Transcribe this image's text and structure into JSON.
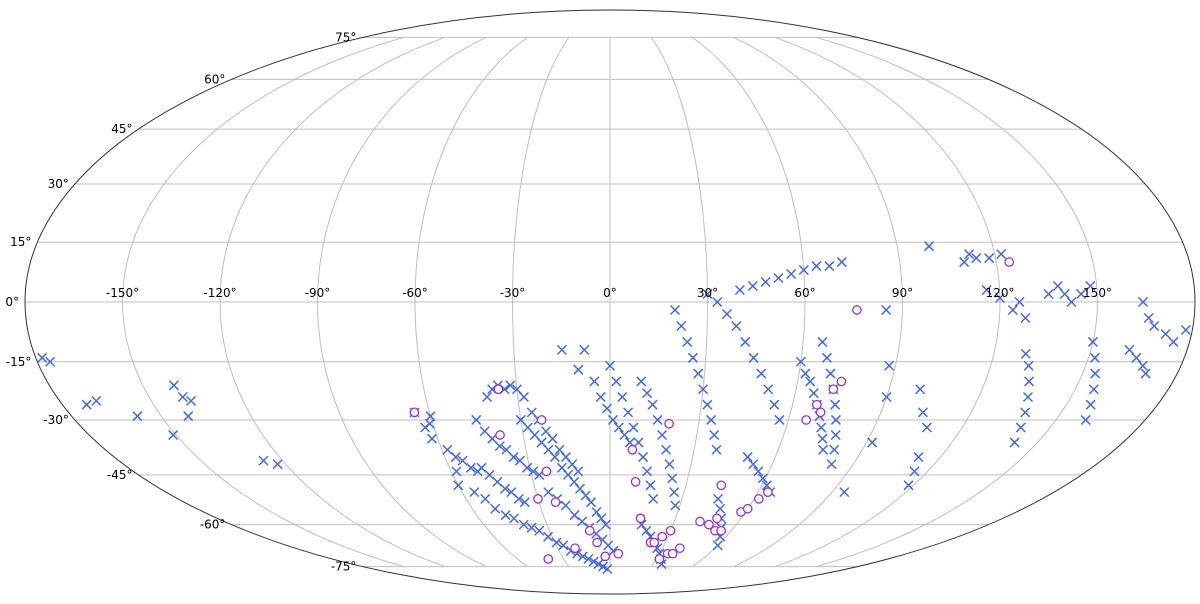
{
  "chart_data": {
    "type": "scatter",
    "projection": "mollweide",
    "title": "",
    "xlabel": "",
    "ylabel": "",
    "grid": true,
    "xlim": [
      -180,
      180
    ],
    "ylim": [
      -90,
      90
    ],
    "x_ticks": [
      -150,
      -120,
      -90,
      -60,
      -30,
      0,
      30,
      60,
      90,
      120,
      150
    ],
    "x_tick_labels": [
      "-150°",
      "-120°",
      "-90°",
      "-60°",
      "-30°",
      "0°",
      "30°",
      "60°",
      "90°",
      "120°",
      "150°"
    ],
    "y_ticks": [
      -75,
      -60,
      -45,
      -30,
      -15,
      0,
      15,
      30,
      45,
      60,
      75
    ],
    "y_tick_labels": [
      "-75°",
      "-60°",
      "-45°",
      "-30°",
      "-15°",
      "0°",
      "15°",
      "30°",
      "45°",
      "60°",
      "75°"
    ],
    "colors": {
      "cross": "#4169e1",
      "circle": "#9932cc",
      "grid": "#bfbfbf",
      "boundary": "#333333"
    },
    "series": [
      {
        "marker": "x",
        "points": [
          [
            -178,
            -14
          ],
          [
            -176,
            -15
          ],
          [
            -172,
            -26
          ],
          [
            -168,
            -25
          ],
          [
            -158,
            -29
          ],
          [
            -151,
            -34
          ],
          [
            -141,
            -29
          ],
          [
            -139,
            -24
          ],
          [
            -140,
            -21
          ],
          [
            -137,
            -25
          ],
          [
            -127,
            -41
          ],
          [
            -123,
            -42
          ],
          [
            -65,
            -28
          ],
          [
            -63,
            -32
          ],
          [
            -61,
            -31
          ],
          [
            -62,
            -35
          ],
          [
            -60,
            -29
          ],
          [
            -58,
            -38
          ],
          [
            -56,
            -40
          ],
          [
            -54,
            -41
          ],
          [
            -52,
            -43
          ],
          [
            -50,
            -44
          ],
          [
            -48,
            -43
          ],
          [
            -46,
            -45
          ],
          [
            -44,
            -47
          ],
          [
            -42,
            -49
          ],
          [
            -40,
            -50
          ],
          [
            -38,
            -52
          ],
          [
            -36,
            -53
          ],
          [
            -60,
            -48
          ],
          [
            -58,
            -44
          ],
          [
            -55,
            -50
          ],
          [
            -52,
            -52
          ],
          [
            -50,
            -55
          ],
          [
            -47,
            -57
          ],
          [
            -44,
            -58
          ],
          [
            -41,
            -60
          ],
          [
            -38,
            -61
          ],
          [
            -35,
            -62
          ],
          [
            -32,
            -64
          ],
          [
            -29,
            -66
          ],
          [
            -26,
            -67
          ],
          [
            -23,
            -69
          ],
          [
            -20,
            -70
          ],
          [
            -17,
            -71
          ],
          [
            -14,
            -72
          ],
          [
            -11,
            -73
          ],
          [
            -8,
            -74
          ],
          [
            -5,
            -75
          ],
          [
            -2,
            -76
          ],
          [
            -45,
            -30
          ],
          [
            -43,
            -33
          ],
          [
            -41,
            -35
          ],
          [
            -39,
            -37
          ],
          [
            -37,
            -38
          ],
          [
            -35,
            -40
          ],
          [
            -33,
            -41
          ],
          [
            -31,
            -43
          ],
          [
            -29,
            -44
          ],
          [
            -27,
            -45
          ],
          [
            -40,
            -24
          ],
          [
            -38,
            -22
          ],
          [
            -36,
            -21
          ],
          [
            -34,
            -22
          ],
          [
            -32,
            -21
          ],
          [
            -30,
            -22
          ],
          [
            -28,
            -24
          ],
          [
            -26,
            -28
          ],
          [
            -24,
            -30
          ],
          [
            -22,
            -33
          ],
          [
            -20,
            -35
          ],
          [
            -18,
            -38
          ],
          [
            -16,
            -40
          ],
          [
            -14,
            -42
          ],
          [
            -12,
            -44
          ],
          [
            -30,
            -30
          ],
          [
            -28,
            -32
          ],
          [
            -26,
            -34
          ],
          [
            -24,
            -36
          ],
          [
            -22,
            -38
          ],
          [
            -20,
            -40
          ],
          [
            -18,
            -43
          ],
          [
            -16,
            -45
          ],
          [
            -14,
            -47
          ],
          [
            -12,
            -49
          ],
          [
            -10,
            -51
          ],
          [
            -8,
            -53
          ],
          [
            -6,
            -56
          ],
          [
            -4,
            -58
          ],
          [
            -2,
            -60
          ],
          [
            -25,
            -50
          ],
          [
            -22,
            -52
          ],
          [
            -19,
            -54
          ],
          [
            -16,
            -57
          ],
          [
            -13,
            -59
          ],
          [
            -10,
            -61
          ],
          [
            -7,
            -63
          ],
          [
            -4,
            -65
          ],
          [
            -1,
            -67
          ],
          [
            2,
            -69
          ],
          [
            -15,
            -12
          ],
          [
            -10,
            -17
          ],
          [
            -8,
            -12
          ],
          [
            -5,
            -20
          ],
          [
            -3,
            -24
          ],
          [
            -1,
            -27
          ],
          [
            1,
            -30
          ],
          [
            3,
            -32
          ],
          [
            5,
            -34
          ],
          [
            7,
            -36
          ],
          [
            0,
            -16
          ],
          [
            2,
            -20
          ],
          [
            4,
            -24
          ],
          [
            6,
            -28
          ],
          [
            8,
            -32
          ],
          [
            10,
            -36
          ],
          [
            12,
            -40
          ],
          [
            14,
            -44
          ],
          [
            16,
            -48
          ],
          [
            18,
            -52
          ],
          [
            10,
            -20
          ],
          [
            12,
            -23
          ],
          [
            14,
            -26
          ],
          [
            16,
            -30
          ],
          [
            18,
            -34
          ],
          [
            20,
            -38
          ],
          [
            22,
            -42
          ],
          [
            24,
            -46
          ],
          [
            26,
            -50
          ],
          [
            28,
            -54
          ],
          [
            15,
            -60
          ],
          [
            18,
            -62
          ],
          [
            21,
            -64
          ],
          [
            24,
            -66
          ],
          [
            27,
            -68
          ],
          [
            30,
            -70
          ],
          [
            33,
            -72
          ],
          [
            36,
            -74
          ],
          [
            20,
            -2
          ],
          [
            22,
            -6
          ],
          [
            24,
            -10
          ],
          [
            26,
            -14
          ],
          [
            28,
            -18
          ],
          [
            30,
            -22
          ],
          [
            32,
            -26
          ],
          [
            34,
            -30
          ],
          [
            36,
            -34
          ],
          [
            38,
            -38
          ],
          [
            30,
            2
          ],
          [
            33,
            0
          ],
          [
            36,
            -3
          ],
          [
            39,
            -6
          ],
          [
            42,
            -10
          ],
          [
            45,
            -14
          ],
          [
            48,
            -18
          ],
          [
            51,
            -22
          ],
          [
            54,
            -26
          ],
          [
            57,
            -30
          ],
          [
            40,
            3
          ],
          [
            44,
            4
          ],
          [
            48,
            5
          ],
          [
            52,
            6
          ],
          [
            56,
            7
          ],
          [
            60,
            8
          ],
          [
            64,
            9
          ],
          [
            68,
            9
          ],
          [
            72,
            10
          ],
          [
            50,
            -40
          ],
          [
            53,
            -42
          ],
          [
            56,
            -44
          ],
          [
            59,
            -46
          ],
          [
            62,
            -48
          ],
          [
            65,
            -50
          ],
          [
            45,
            -52
          ],
          [
            48,
            -55
          ],
          [
            51,
            -58
          ],
          [
            54,
            -61
          ],
          [
            57,
            -64
          ],
          [
            60,
            -67
          ],
          [
            66,
            -10
          ],
          [
            68,
            -14
          ],
          [
            70,
            -18
          ],
          [
            72,
            -22
          ],
          [
            74,
            -26
          ],
          [
            76,
            -30
          ],
          [
            78,
            -34
          ],
          [
            80,
            -38
          ],
          [
            82,
            -42
          ],
          [
            60,
            -15
          ],
          [
            62,
            -18
          ],
          [
            64,
            -20
          ],
          [
            66,
            -23
          ],
          [
            68,
            -26
          ],
          [
            70,
            -29
          ],
          [
            72,
            -32
          ],
          [
            74,
            -35
          ],
          [
            76,
            -38
          ],
          [
            85,
            -2
          ],
          [
            88,
            -16
          ],
          [
            90,
            -24
          ],
          [
            92,
            -36
          ],
          [
            95,
            -50
          ],
          [
            100,
            -22
          ],
          [
            104,
            -28
          ],
          [
            108,
            -32
          ],
          [
            112,
            -40
          ],
          [
            115,
            -44
          ],
          [
            118,
            -48
          ],
          [
            100,
            14
          ],
          [
            110,
            10
          ],
          [
            112,
            12
          ],
          [
            114,
            11
          ],
          [
            118,
            11
          ],
          [
            122,
            12
          ],
          [
            116,
            3
          ],
          [
            120,
            1
          ],
          [
            124,
            -2
          ],
          [
            126,
            0
          ],
          [
            128,
            -4
          ],
          [
            130,
            -13
          ],
          [
            132,
            -16
          ],
          [
            134,
            -20
          ],
          [
            136,
            -24
          ],
          [
            138,
            -28
          ],
          [
            140,
            -32
          ],
          [
            142,
            -36
          ],
          [
            135,
            2
          ],
          [
            138,
            4
          ],
          [
            140,
            2
          ],
          [
            142,
            0
          ],
          [
            145,
            2
          ],
          [
            148,
            4
          ],
          [
            150,
            -10
          ],
          [
            152,
            -14
          ],
          [
            154,
            -18
          ],
          [
            156,
            -22
          ],
          [
            158,
            -26
          ],
          [
            160,
            -30
          ],
          [
            162,
            -12
          ],
          [
            165,
            -14
          ],
          [
            168,
            -16
          ],
          [
            170,
            -18
          ],
          [
            172,
            -8
          ],
          [
            175,
            -10
          ],
          [
            178,
            -7
          ],
          [
            164,
            0
          ],
          [
            166,
            -4
          ],
          [
            168,
            -6
          ]
        ]
      },
      {
        "marker": "o",
        "points": [
          [
            -65,
            -28
          ],
          [
            -36,
            -22
          ],
          [
            -38,
            -34
          ],
          [
            -23,
            -30
          ],
          [
            -24,
            -44
          ],
          [
            -23,
            -53
          ],
          [
            -30,
            -52
          ],
          [
            -10,
            -62
          ],
          [
            -7,
            -66
          ],
          [
            -20,
            -68
          ],
          [
            -3,
            -71
          ],
          [
            5,
            -70
          ],
          [
            -40,
            -72
          ],
          [
            8,
            -38
          ],
          [
            10,
            -47
          ],
          [
            14,
            -58
          ],
          [
            20,
            -31
          ],
          [
            22,
            -66
          ],
          [
            24,
            -66
          ],
          [
            27,
            -64
          ],
          [
            30,
            -62
          ],
          [
            32,
            -72
          ],
          [
            35,
            -70
          ],
          [
            38,
            -70
          ],
          [
            40,
            -68
          ],
          [
            42,
            -59
          ],
          [
            44,
            -48
          ],
          [
            47,
            -60
          ],
          [
            49,
            -58
          ],
          [
            52,
            -62
          ],
          [
            55,
            -62
          ],
          [
            58,
            -56
          ],
          [
            60,
            -55
          ],
          [
            62,
            -52
          ],
          [
            64,
            -50
          ],
          [
            66,
            -30
          ],
          [
            68,
            -26
          ],
          [
            70,
            -28
          ],
          [
            72,
            -22
          ],
          [
            74,
            -20
          ],
          [
            76,
            -2
          ],
          [
            124,
            10
          ]
        ]
      }
    ]
  }
}
